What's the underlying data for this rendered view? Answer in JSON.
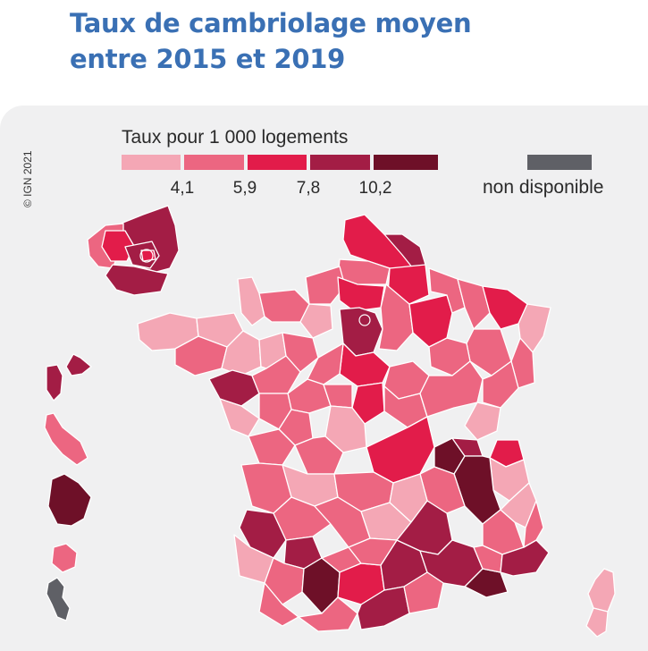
{
  "title": {
    "line1": "Taux de cambriolage moyen",
    "line2": "entre 2015 et 2019"
  },
  "credit": "© IGN 2021",
  "legend": {
    "title": "Taux pour 1 000 logements",
    "breaks": [
      "4,1",
      "5,9",
      "7,8",
      "10,2"
    ],
    "classes": [
      {
        "color": "#f4a7b5"
      },
      {
        "color": "#ec6681"
      },
      {
        "color": "#e21c4a"
      },
      {
        "color": "#a31d45"
      },
      {
        "color": "#6e1028"
      }
    ],
    "not_available": {
      "label": "non disponible",
      "color": "#5f6066"
    }
  },
  "colors": {
    "title": "#3a70b4",
    "panel": "#f0f0f1",
    "border": "#ffffff"
  }
}
